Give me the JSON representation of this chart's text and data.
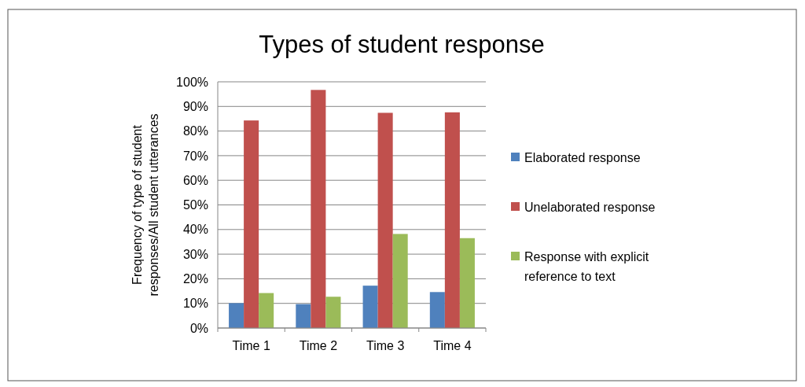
{
  "chart_data": {
    "type": "bar",
    "title": "Types of student response",
    "ylabel": "Frequency of type of student responses/All student utterances",
    "categories": [
      "Time 1",
      "Time 2",
      "Time 3",
      "Time 4"
    ],
    "series": [
      {
        "name": "Elaborated response",
        "color": "#4f81bd",
        "values": [
          10.1,
          9.7,
          17.2,
          14.6
        ]
      },
      {
        "name": "Unelaborated response",
        "color": "#c0504d",
        "values": [
          84.3,
          96.7,
          87.4,
          87.6
        ]
      },
      {
        "name": "Response with explicit reference to text",
        "color": "#9bbb59",
        "values": [
          14.2,
          12.7,
          38.2,
          36.5
        ]
      }
    ],
    "ylim": [
      0,
      100
    ],
    "yticks": [
      {
        "value": 0,
        "label": "0%"
      },
      {
        "value": 10,
        "label": "10%"
      },
      {
        "value": 20,
        "label": "20%"
      },
      {
        "value": 30,
        "label": "30%"
      },
      {
        "value": 40,
        "label": "40%"
      },
      {
        "value": 50,
        "label": "50%"
      },
      {
        "value": 60,
        "label": "60%"
      },
      {
        "value": 70,
        "label": "70%"
      },
      {
        "value": 80,
        "label": "80%"
      },
      {
        "value": 90,
        "label": "90%"
      },
      {
        "value": 100,
        "label": "100%"
      }
    ],
    "grid": "y",
    "legend": "right"
  }
}
